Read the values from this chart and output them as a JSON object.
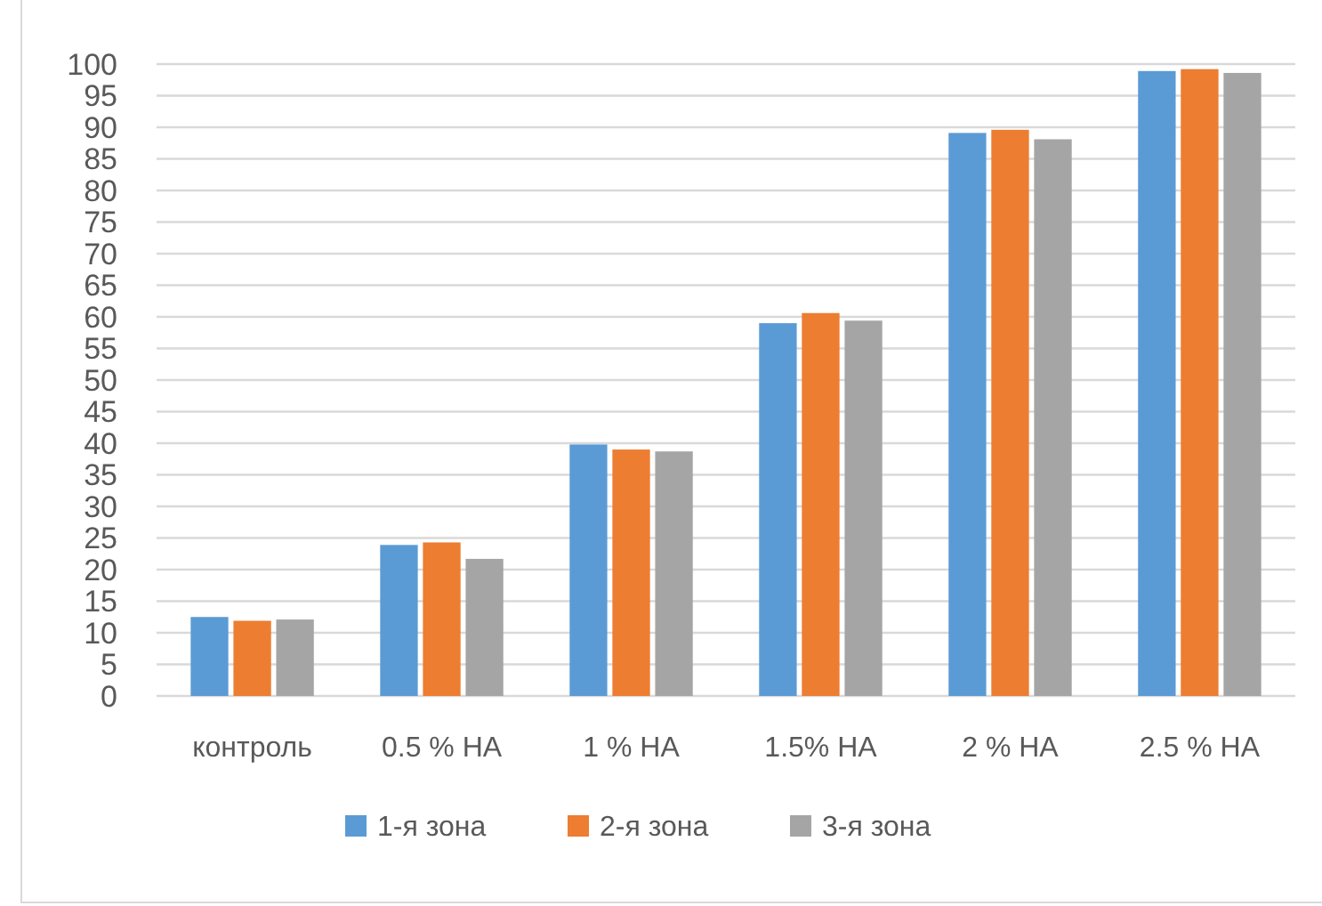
{
  "chart_data": {
    "type": "bar",
    "categories": [
      "контроль",
      "0.5 % НА",
      "1 % НА",
      "1.5% НА",
      "2 % НА",
      "2.5 % НА"
    ],
    "series": [
      {
        "name": "1-я зона",
        "color": "#5b9bd5",
        "values": [
          12.5,
          23.9,
          39.8,
          59.0,
          89.1,
          98.9
        ]
      },
      {
        "name": "2-я зона",
        "color": "#ed7d31",
        "values": [
          11.9,
          24.3,
          39.0,
          60.6,
          89.6,
          99.2
        ]
      },
      {
        "name": "3-я зона",
        "color": "#a5a5a5",
        "values": [
          12.1,
          21.7,
          38.7,
          59.4,
          88.1,
          98.6
        ]
      }
    ],
    "ylim": [
      0,
      100
    ],
    "yticks": [
      0,
      5,
      10,
      15,
      20,
      25,
      30,
      35,
      40,
      45,
      50,
      55,
      60,
      65,
      70,
      75,
      80,
      85,
      90,
      95,
      100
    ],
    "grid": "y",
    "legend": "bottom"
  }
}
